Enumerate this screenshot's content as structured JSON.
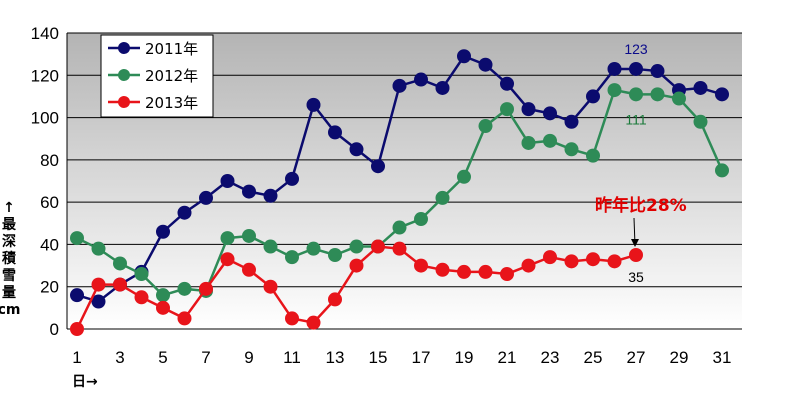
{
  "chart_data": {
    "type": "line",
    "title": "",
    "xlabel": "日→",
    "ylabel": "↑最深積雪量cm",
    "ylabel_chars": [
      "↑",
      "最",
      "深",
      "積",
      "雪",
      "量",
      "cm"
    ],
    "ylim": [
      0,
      140
    ],
    "yticks": [
      0,
      20,
      40,
      60,
      80,
      100,
      120,
      140
    ],
    "xlim": [
      1,
      31
    ],
    "xticks": [
      1,
      3,
      5,
      7,
      9,
      11,
      13,
      15,
      17,
      19,
      21,
      23,
      25,
      27,
      29,
      31
    ],
    "grid": true,
    "legend_position": "top-left",
    "series": [
      {
        "name": "2011年",
        "color": "#0b0b6e",
        "x": [
          1,
          2,
          3,
          4,
          5,
          6,
          7,
          8,
          9,
          10,
          11,
          12,
          13,
          14,
          15,
          16,
          17,
          18,
          19,
          20,
          21,
          22,
          23,
          24,
          25,
          26,
          27,
          28,
          29,
          30,
          31
        ],
        "values": [
          16,
          13,
          21,
          27,
          46,
          55,
          62,
          70,
          65,
          63,
          71,
          106,
          93,
          85,
          77,
          115,
          118,
          114,
          129,
          125,
          116,
          104,
          102,
          98,
          110,
          123,
          123,
          122,
          113,
          114,
          111
        ]
      },
      {
        "name": "2012年",
        "color": "#2e8b57",
        "x": [
          1,
          2,
          3,
          4,
          5,
          6,
          7,
          8,
          9,
          10,
          11,
          12,
          13,
          14,
          15,
          16,
          17,
          18,
          19,
          20,
          21,
          22,
          23,
          24,
          25,
          26,
          27,
          28,
          29,
          30,
          31
        ],
        "values": [
          43,
          38,
          31,
          26,
          16,
          19,
          18,
          43,
          44,
          39,
          34,
          38,
          35,
          39,
          39,
          48,
          52,
          62,
          72,
          96,
          104,
          88,
          89,
          85,
          82,
          113,
          111,
          111,
          109,
          98,
          75
        ]
      },
      {
        "name": "2013年",
        "color": "#e8141a",
        "x": [
          1,
          2,
          3,
          4,
          5,
          6,
          7,
          8,
          9,
          10,
          11,
          12,
          13,
          14,
          15,
          16,
          17,
          18,
          19,
          20,
          21,
          22,
          23,
          24,
          25,
          26,
          27
        ],
        "values": [
          0,
          21,
          21,
          15,
          10,
          5,
          19,
          33,
          28,
          20,
          5,
          3,
          14,
          30,
          39,
          38,
          30,
          28,
          27,
          27,
          26,
          30,
          34,
          32,
          33,
          32,
          35
        ]
      }
    ],
    "annotations": [
      {
        "text": "123",
        "series": "2011年",
        "x": 27,
        "y": 123,
        "color": "#0b0b8a"
      },
      {
        "text": "111",
        "series": "2012年",
        "x": 27,
        "y": 111,
        "color": "#1a7a3a"
      },
      {
        "text": "35",
        "series": "2013年",
        "x": 27,
        "y": 35,
        "color": "#000000"
      }
    ],
    "callout": {
      "text": "昨年比28%",
      "color": "#e00000"
    }
  }
}
